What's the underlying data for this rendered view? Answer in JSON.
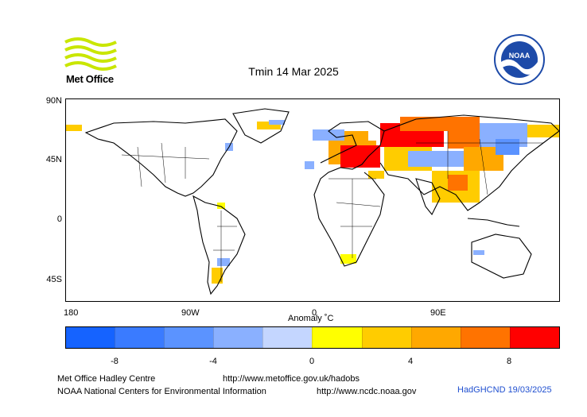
{
  "title": "Tmin 14 Mar 2025",
  "logos": {
    "metoffice": "Met Office",
    "noaa": "NOAA"
  },
  "lat_ticks": [
    "90N",
    "45N",
    "0",
    "45S"
  ],
  "lon_ticks": [
    "180",
    "90W",
    "0",
    "90E"
  ],
  "colorbar": {
    "title": "Anomaly ˚C",
    "colors": [
      "#1563ff",
      "#3a7bff",
      "#5b93ff",
      "#8ab0ff",
      "#c4d6ff",
      "#ffff00",
      "#ffcc00",
      "#ffa800",
      "#ff7300",
      "#ff0000"
    ],
    "tick_labels": [
      "-8",
      "-4",
      "0",
      "4",
      "8"
    ]
  },
  "footer": {
    "org1": "Met Office Hadley Centre",
    "url1": "http://www.metoffice.gov.uk/hadobs",
    "org2": "NOAA National Centers for Environmental Information",
    "url2": "http://www.ncdc.noaa.gov",
    "dataset": "HadGHCND 19/03/2025"
  }
}
